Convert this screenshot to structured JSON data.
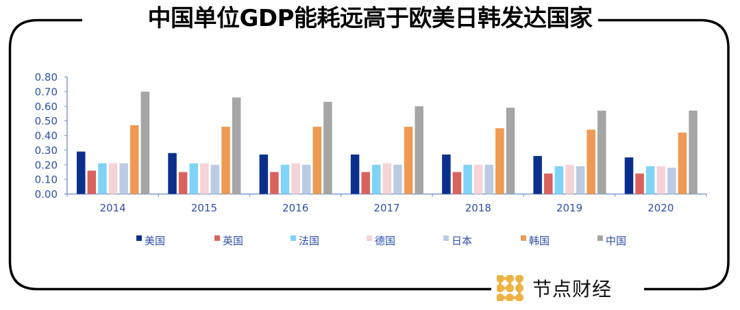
{
  "header": {
    "title": "中国单位GDP能耗远高于欧美日韩发达国家"
  },
  "brand": {
    "name": "节点财经",
    "icon": "node-dots-logo-icon",
    "color": "#EDB445"
  },
  "colors": {
    "frame": "#000000",
    "axis": "#7C9BD1",
    "tick_text": "#2E4FA8"
  },
  "chart_data": {
    "type": "bar",
    "title": "中国单位GDP能耗远高于欧美日韩发达国家",
    "xlabel": "",
    "ylabel": "",
    "ylim": [
      0,
      0.8
    ],
    "yticks": [
      0,
      0.1,
      0.2,
      0.3,
      0.4,
      0.5,
      0.6,
      0.7,
      0.8
    ],
    "ytick_labels": [
      "0.00",
      "0.10",
      "0.20",
      "0.30",
      "0.40",
      "0.50",
      "0.60",
      "0.70",
      "0.80"
    ],
    "categories": [
      "2014",
      "2015",
      "2016",
      "2017",
      "2018",
      "2019",
      "2020"
    ],
    "grid": false,
    "legend_position": "bottom",
    "series": [
      {
        "name": "美国",
        "color": "#0B2F8C",
        "values": [
          0.29,
          0.28,
          0.27,
          0.27,
          0.27,
          0.26,
          0.25
        ]
      },
      {
        "name": "英国",
        "color": "#D9625E",
        "values": [
          0.16,
          0.15,
          0.15,
          0.15,
          0.15,
          0.14,
          0.14
        ]
      },
      {
        "name": "法国",
        "color": "#7FD3F7",
        "values": [
          0.21,
          0.21,
          0.2,
          0.2,
          0.2,
          0.19,
          0.19
        ]
      },
      {
        "name": "德国",
        "color": "#F5D3D6",
        "values": [
          0.21,
          0.21,
          0.21,
          0.21,
          0.2,
          0.2,
          0.19
        ]
      },
      {
        "name": "日本",
        "color": "#BACBE3",
        "values": [
          0.21,
          0.2,
          0.2,
          0.2,
          0.2,
          0.19,
          0.18
        ]
      },
      {
        "name": "韩国",
        "color": "#EE9A52",
        "values": [
          0.47,
          0.46,
          0.46,
          0.46,
          0.45,
          0.44,
          0.42
        ]
      },
      {
        "name": "中国",
        "color": "#A5A5A5",
        "values": [
          0.7,
          0.66,
          0.63,
          0.6,
          0.59,
          0.57,
          0.57
        ]
      }
    ]
  }
}
